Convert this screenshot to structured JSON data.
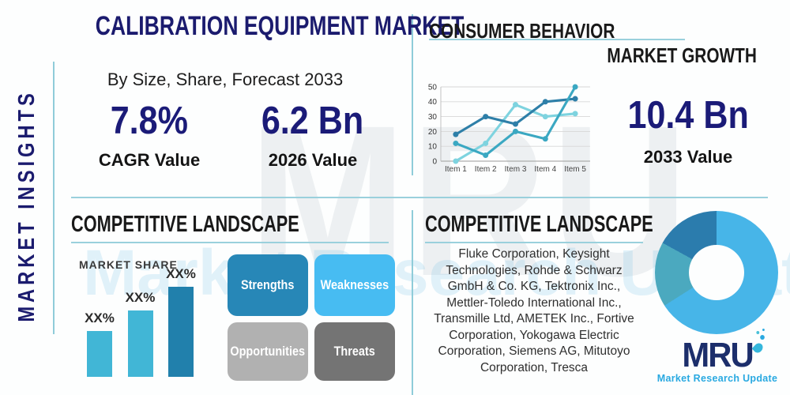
{
  "header": {
    "title": "CALIBRATION EQUIPMENT MARKET",
    "subtitle": "By Size, Share, Forecast 2033"
  },
  "side_label": "MARKET INSIGHTS",
  "kpis": {
    "cagr": {
      "value": "7.8%",
      "label": "CAGR Value"
    },
    "base": {
      "value": "6.2 Bn",
      "label": "2026 Value"
    },
    "forecast": {
      "value": "10.4 Bn",
      "label": "2033 Value"
    }
  },
  "sections": {
    "consumer_behavior": {
      "title": "CONSUMER BEHAVIOR",
      "subtitle": "MARKET GROWTH"
    },
    "competitive_left": {
      "title": "COMPETITIVE LANDSCAPE",
      "market_share_label": "MARKET SHARE"
    },
    "competitive_right": {
      "title": "COMPETITIVE LANDSCAPE",
      "company_lines": [
        "Fluke Corporation, Keysight",
        "Technologies, Rohde & Schwarz",
        "GmbH & Co. KG, Tektronix Inc.,",
        "Mettler-Toledo International Inc.,",
        "Transmille Ltd, AMETEK Inc., Fortive",
        "Corporation, Yokogawa Electric",
        "Corporation, Siemens AG, Mitutoyo",
        "Corporation, Tresca"
      ]
    }
  },
  "swot": [
    {
      "label": "Strengths",
      "color": "#2787b7"
    },
    {
      "label": "Weaknesses",
      "color": "#47bcf2"
    },
    {
      "label": "Opportunities",
      "color": "#b1b1b1"
    },
    {
      "label": "Threats",
      "color": "#747474"
    }
  ],
  "chart_data": [
    {
      "type": "line",
      "title": "CONSUMER BEHAVIOR",
      "x": [
        "Item 1",
        "Item 2",
        "Item 3",
        "Item 4",
        "Item 5"
      ],
      "yticks": [
        0,
        10,
        20,
        30,
        40,
        50
      ],
      "ylim": [
        0,
        50
      ],
      "grid": true,
      "legend": "none",
      "series": [
        {
          "name": "light-cyan-series",
          "color": "#7ed3df",
          "values": [
            0,
            12,
            38,
            30,
            32
          ]
        },
        {
          "name": "dark-blue-series",
          "color": "#2e7fa8",
          "values": [
            18,
            30,
            25,
            40,
            42
          ]
        },
        {
          "name": "teal-series",
          "color": "#3ba8c2",
          "values": [
            12,
            4,
            20,
            15,
            50
          ]
        }
      ]
    },
    {
      "type": "bar",
      "title": "MARKET SHARE",
      "categories": [
        "",
        "",
        ""
      ],
      "values": [
        29,
        42,
        57
      ],
      "value_labels": [
        "XX%",
        "XX%",
        "XX%"
      ],
      "colors": [
        "#41b6d6",
        "#41b6d6",
        "#2180ac"
      ],
      "ylim": [
        0,
        73
      ]
    },
    {
      "type": "donut",
      "segments": [
        {
          "value": 66,
          "color": "#47b5e8"
        },
        {
          "value": 17,
          "color": "#4ba9bf"
        },
        {
          "value": 17,
          "color": "#2b7cad"
        }
      ]
    }
  ],
  "logo": {
    "abbr": "MRU",
    "tagline": "Market Research Update"
  },
  "watermark": {
    "big": "MRU",
    "tagline": "Market Research Update"
  },
  "colors": {
    "navy": "#1b1b6e",
    "divider": "#8fccd9",
    "heading": "#191919"
  }
}
